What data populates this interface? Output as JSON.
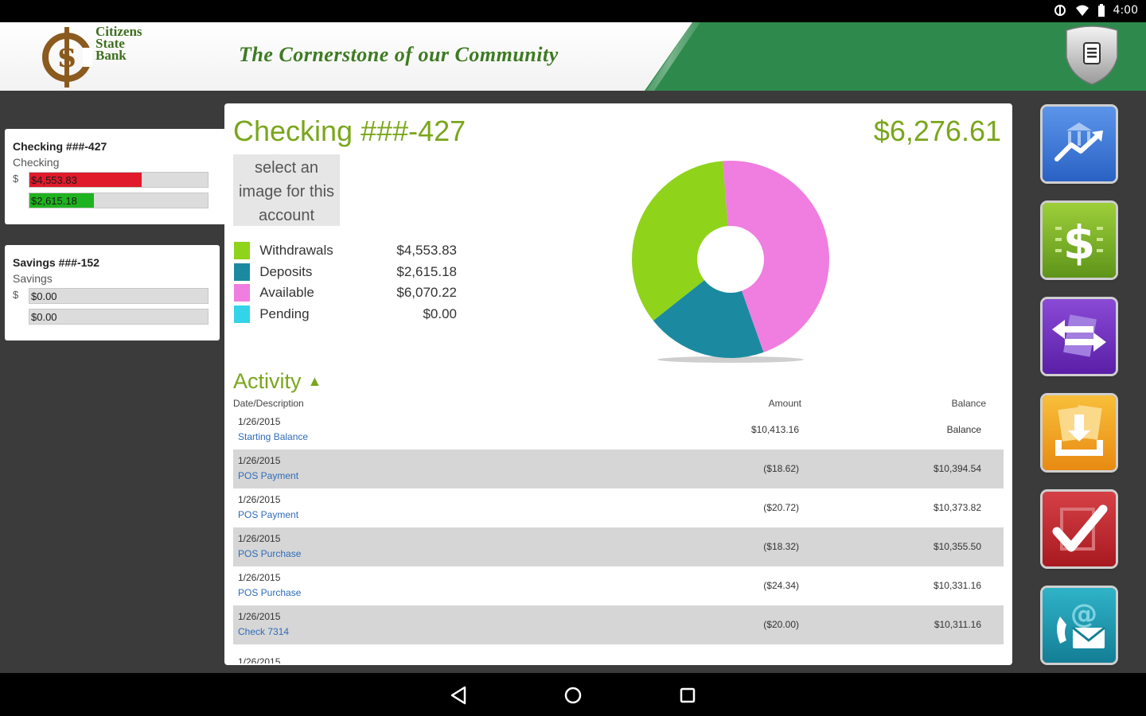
{
  "status_bar": {
    "time": "4:00",
    "icons": [
      "vibrate-icon",
      "wifi-icon",
      "battery-icon"
    ]
  },
  "header": {
    "bank_name_line1": "Citizens",
    "bank_name_line2": "State",
    "bank_name_line3": "Bank",
    "tagline": "The Cornerstone of our Community",
    "lock_button": "lock-icon",
    "colors": {
      "green": "#2e8a4c",
      "logo": "#3d6f1f"
    }
  },
  "accounts": [
    {
      "title": "Checking ###-427",
      "type": "Checking",
      "prefix": "$",
      "bars": [
        {
          "label": "$4,553.83",
          "fill": 0.63,
          "color": "#e01a2a"
        },
        {
          "label": "$2,615.18",
          "fill": 0.36,
          "color": "#1fb31f"
        }
      ]
    },
    {
      "title": "Savings ###-152",
      "type": "Savings",
      "prefix": "$",
      "bars": [
        {
          "label": "$0.00",
          "fill": 0,
          "color": "#1fb31f"
        },
        {
          "label": "$0.00",
          "fill": 0,
          "color": "#1fb31f"
        }
      ]
    }
  ],
  "main": {
    "account_title": "Checking ###-427",
    "balance": "$6,276.61",
    "image_select": "select an image for this account",
    "legend": [
      {
        "name": "Withdrawals",
        "value": "$4,553.83",
        "color": "#8fd31a"
      },
      {
        "name": "Deposits",
        "value": "$2,615.18",
        "color": "#1b8aa0"
      },
      {
        "name": "Available",
        "value": "$6,070.22",
        "color": "#f07de0"
      },
      {
        "name": "Pending",
        "value": "$0.00",
        "color": "#33d3ea"
      }
    ],
    "activity": {
      "title": "Activity",
      "arrow": "▲",
      "headers": {
        "date_desc": "Date/Description",
        "amount": "Amount",
        "balance": "Balance"
      },
      "rows": [
        {
          "date": "1/26/2015",
          "desc": "Starting Balance",
          "amount": "$10,413.16",
          "balance": "Balance"
        },
        {
          "date": "1/26/2015",
          "desc": "POS Payment",
          "amount": "($18.62)",
          "balance": "$10,394.54"
        },
        {
          "date": "1/26/2015",
          "desc": "POS Payment",
          "amount": "($20.72)",
          "balance": "$10,373.82"
        },
        {
          "date": "1/26/2015",
          "desc": "POS Purchase",
          "amount": "($18.32)",
          "balance": "$10,355.50"
        },
        {
          "date": "1/26/2015",
          "desc": "POS Purchase",
          "amount": "($24.34)",
          "balance": "$10,331.16"
        },
        {
          "date": "1/26/2015",
          "desc": "Check 7314",
          "amount": "($20.00)",
          "balance": "$10,311.16"
        }
      ],
      "partial_row_date": "1/26/2015"
    }
  },
  "chart_data": {
    "type": "pie",
    "categories": [
      "Withdrawals",
      "Deposits",
      "Available",
      "Pending"
    ],
    "values": [
      4553.83,
      2615.18,
      6070.22,
      0.0
    ],
    "colors": [
      "#8fd31a",
      "#1b8aa0",
      "#f07de0",
      "#33d3ea"
    ],
    "title": "",
    "legend": "left"
  },
  "side_buttons": [
    {
      "icon": "bank-chart-icon",
      "color": "#2f6fd0"
    },
    {
      "icon": "dollar-icon",
      "color": "#7bb21e"
    },
    {
      "icon": "transfer-icon",
      "color": "#6a2bb8"
    },
    {
      "icon": "deposit-download-icon",
      "color": "#f0a020"
    },
    {
      "icon": "checkmark-icon",
      "color": "#c2252b"
    },
    {
      "icon": "contact-phone-mail-icon",
      "color": "#1b8aa5"
    }
  ]
}
